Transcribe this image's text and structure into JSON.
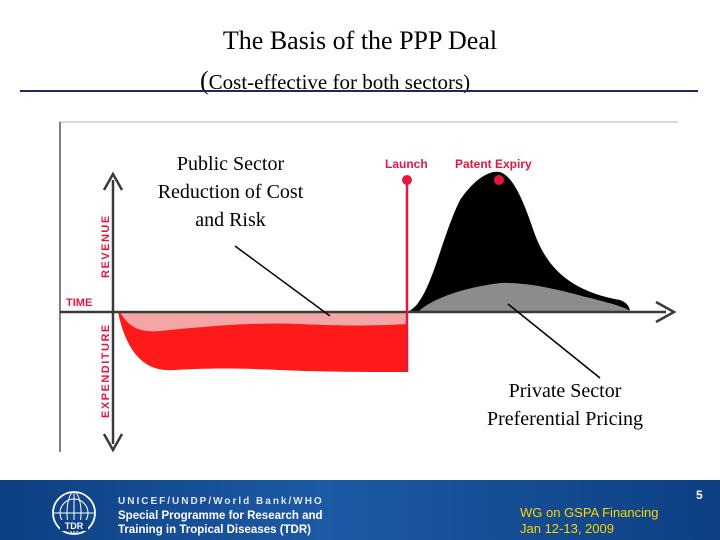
{
  "slide": {
    "title": "The Basis of the PPP Deal",
    "subtitle_open": "(",
    "subtitle_text": "Cost-effective for both sectors",
    "subtitle_close": ")",
    "page_number": "5"
  },
  "diagram": {
    "axis_revenue": "REVENUE",
    "axis_expenditure": "EXPENDITURE",
    "axis_time": "TIME",
    "marker_launch": "Launch",
    "marker_patent_expiry": "Patent Expiry",
    "label_public": [
      "Public Sector",
      "Reduction of Cost",
      "and Risk"
    ],
    "label_private": [
      "Private Sector",
      "Preferential Pricing"
    ],
    "colors": {
      "marker": "#e5173f",
      "expenditure_dark": "#ff1a1a",
      "expenditure_light": "#f4a6a6",
      "revenue_dark": "#000000",
      "revenue_light": "#8c8c8c",
      "footer": "#1d5aa5",
      "event_text": "#ffd400"
    }
  },
  "footer": {
    "logo_text": "TDR",
    "org_line": "UNICEF/UNDP/World Bank/WHO",
    "programme_line1": "Special Programme for Research and",
    "programme_line2": "Training in Tropical Diseases (TDR)",
    "event_line1": "WG on GSPA Financing",
    "event_line2": "Jan 12-13, 2009"
  }
}
